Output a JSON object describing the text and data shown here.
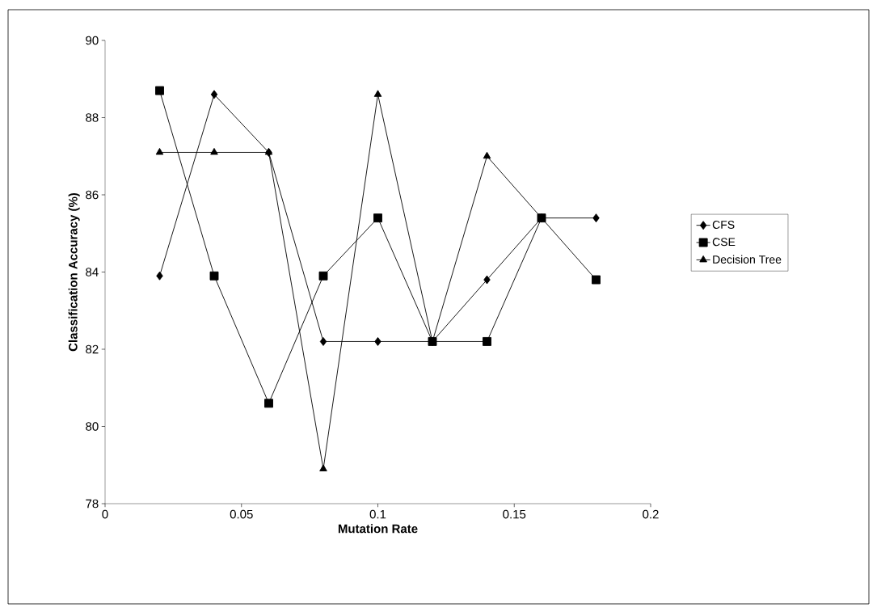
{
  "chart_data": {
    "type": "line",
    "xlabel": "Mutation Rate",
    "ylabel": "Classification Accuracy (%)",
    "xlim": [
      0,
      0.2
    ],
    "xticks": [
      0,
      0.05,
      0.1,
      0.15,
      0.2
    ],
    "ylim": [
      78,
      90
    ],
    "yticks": [
      78,
      80,
      82,
      84,
      86,
      88,
      90
    ],
    "grid": false,
    "legend": "right",
    "line_style": "solid",
    "series": [
      {
        "name": "CFS",
        "color": "#000000",
        "marker": "diamond",
        "x": [
          0.02,
          0.04,
          0.06,
          0.08,
          0.1,
          0.12,
          0.14,
          0.16,
          0.18
        ],
        "values": [
          83.9,
          88.6,
          87.1,
          82.2,
          82.2,
          82.2,
          83.8,
          85.4,
          85.4
        ]
      },
      {
        "name": "CSE",
        "color": "#000000",
        "marker": "square",
        "x": [
          0.02,
          0.04,
          0.06,
          0.08,
          0.1,
          0.12,
          0.14,
          0.16,
          0.18
        ],
        "values": [
          88.7,
          83.9,
          80.6,
          83.9,
          85.4,
          82.2,
          82.2,
          85.4,
          83.8
        ]
      },
      {
        "name": "Decision Tree",
        "color": "#000000",
        "marker": "triangle",
        "x": [
          0.02,
          0.04,
          0.06,
          0.08,
          0.1,
          0.12,
          0.14,
          0.16
        ],
        "values": [
          87.1,
          87.1,
          87.1,
          78.9,
          88.6,
          82.2,
          87.0,
          85.4
        ]
      }
    ]
  }
}
